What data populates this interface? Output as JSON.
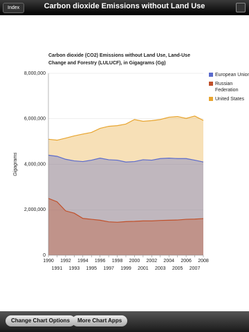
{
  "header": {
    "back": "Index",
    "title": "Carbon dioxide Emissions without Land Use"
  },
  "toolbar": {
    "buttons": [
      "Change Chart Options",
      "More Chart Apps"
    ]
  },
  "chart_data": {
    "type": "area",
    "title": [
      "Carbon dioxide (CO2) Emissions without Land Use, Land-Use",
      "Change and Forestry (LULUCF), in Gigagrams (Gg)"
    ],
    "y_label": "Gigagrams",
    "x": [
      1990,
      1991,
      1992,
      1993,
      1994,
      1995,
      1996,
      1997,
      1998,
      1999,
      2000,
      2001,
      2002,
      2003,
      2004,
      2005,
      2006,
      2007,
      2008
    ],
    "xlim": [
      1990,
      2008
    ],
    "xticks": [
      1990,
      1991,
      1992,
      1993,
      1994,
      1995,
      1996,
      1997,
      1998,
      1999,
      2000,
      2001,
      2002,
      2003,
      2004,
      2005,
      2006,
      2007,
      2008
    ],
    "ylim": [
      0,
      8000000
    ],
    "yticks": [
      0,
      {
        "value": 2000000,
        "label": "2,000,000"
      },
      {
        "value": 4000000,
        "label": "4,000,000"
      },
      {
        "value": 6000000,
        "label": "6,000,000"
      },
      {
        "value": 8000000,
        "label": "8,000,000"
      }
    ],
    "grid": true,
    "legend": "right",
    "series": [
      {
        "name": "European Union",
        "color": "#5a6acc",
        "values": [
          4400000,
          4350000,
          4220000,
          4150000,
          4120000,
          4180000,
          4270000,
          4200000,
          4180000,
          4100000,
          4120000,
          4200000,
          4180000,
          4250000,
          4270000,
          4250000,
          4250000,
          4180000,
          4100000
        ]
      },
      {
        "name": "Russian Federation",
        "color": "#c0502a",
        "values": [
          2500000,
          2350000,
          1950000,
          1850000,
          1620000,
          1580000,
          1540000,
          1470000,
          1450000,
          1480000,
          1490000,
          1510000,
          1510000,
          1530000,
          1540000,
          1550000,
          1580000,
          1590000,
          1610000
        ]
      },
      {
        "name": "United States",
        "color": "#e8a530",
        "values": [
          5100000,
          5060000,
          5150000,
          5250000,
          5330000,
          5400000,
          5580000,
          5670000,
          5700000,
          5770000,
          5970000,
          5890000,
          5920000,
          5970000,
          6070000,
          6100000,
          6020000,
          6120000,
          5930000
        ]
      }
    ]
  }
}
